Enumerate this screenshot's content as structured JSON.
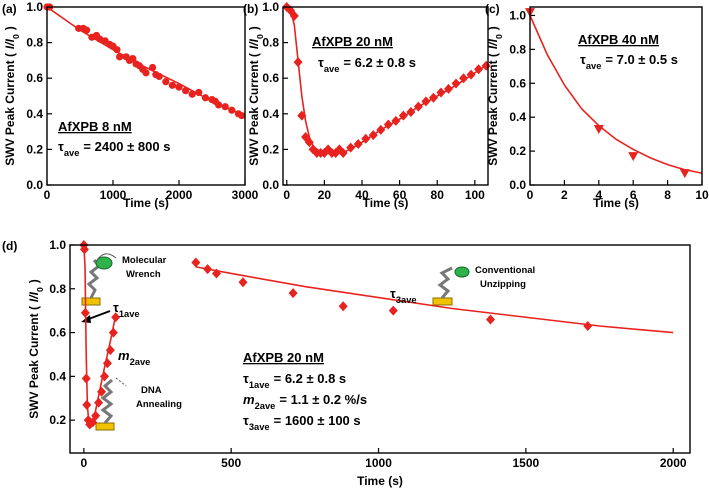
{
  "chart_data": [
    {
      "type": "scatter",
      "panel_label": "(a)",
      "xlabel": "Time (s)",
      "ylabel": [
        {
          "t": "SWV Peak Current ("
        },
        {
          "t": "I/I",
          "italic": true
        },
        {
          "t": "0",
          "sub": true
        },
        {
          "t": ")"
        }
      ],
      "xlim": [
        0,
        3000
      ],
      "ylim": [
        0,
        1.0
      ],
      "xticks": [
        0,
        1000,
        2000,
        3000
      ],
      "yticks": [
        {
          "value": 0,
          "label": "0.0"
        },
        0.2,
        0.4,
        0.6,
        0.8,
        {
          "value": 1,
          "label": "1.0"
        }
      ],
      "marker": "circle",
      "color": "#e8231f",
      "points": {
        "x": [
          0,
          40,
          480,
          550,
          600,
          680,
          750,
          800,
          880,
          950,
          1000,
          1060,
          1100,
          1200,
          1250,
          1300,
          1350,
          1400,
          1450,
          1500,
          1600,
          1650,
          1700,
          1800,
          1900,
          2000,
          2100,
          2200,
          2300,
          2400,
          2500,
          2550,
          2600,
          2700,
          2800,
          2900,
          2950
        ],
        "y": [
          1.0,
          1.0,
          0.88,
          0.88,
          0.87,
          0.83,
          0.84,
          0.82,
          0.81,
          0.79,
          0.78,
          0.76,
          0.72,
          0.72,
          0.7,
          0.71,
          0.68,
          0.67,
          0.65,
          0.63,
          0.66,
          0.62,
          0.61,
          0.58,
          0.56,
          0.55,
          0.53,
          0.51,
          0.52,
          0.49,
          0.48,
          0.47,
          0.45,
          0.44,
          0.42,
          0.4,
          0.39
        ]
      },
      "fits": [
        {
          "x": [
            0,
            500,
            1000,
            1500,
            2000,
            2500,
            3000
          ],
          "y": [
            1.0,
            0.87,
            0.76,
            0.66,
            0.57,
            0.47,
            0.39
          ]
        }
      ],
      "annotations": [
        {
          "parts": [
            {
              "t": "AfXPB 8 nM",
              "underline": true
            }
          ]
        },
        {
          "parts": [
            {
              "t": "τ"
            },
            {
              "t": "ave",
              "sub": true
            },
            {
              "t": "= 2400 ± 800 s"
            }
          ]
        }
      ]
    },
    {
      "type": "scatter",
      "panel_label": "(b)",
      "xlabel": "Time (s)",
      "ylabel": [
        {
          "t": "SWV Peak Current ("
        },
        {
          "t": "I/I",
          "italic": true
        },
        {
          "t": "0",
          "sub": true
        },
        {
          "t": ")"
        }
      ],
      "xlim": [
        -2,
        107
      ],
      "ylim": [
        0,
        1.0
      ],
      "xticks": [
        0,
        20,
        40,
        60,
        80,
        100
      ],
      "yticks": [
        {
          "value": 0,
          "label": "0.0"
        },
        0.2,
        0.4,
        0.6,
        0.8,
        {
          "value": 1,
          "label": "1.0"
        }
      ],
      "marker": "diamond",
      "color": "#e8231f",
      "points": {
        "x": [
          0,
          2,
          4,
          6,
          8,
          10,
          12,
          14,
          16,
          18,
          20,
          22,
          24,
          26,
          28,
          30,
          34,
          38,
          42,
          46,
          50,
          54,
          58,
          62,
          66,
          70,
          74,
          78,
          82,
          86,
          90,
          94,
          98,
          102,
          106
        ],
        "y": [
          1.0,
          0.98,
          0.95,
          0.69,
          0.39,
          0.27,
          0.24,
          0.2,
          0.18,
          0.18,
          0.18,
          0.2,
          0.18,
          0.18,
          0.2,
          0.18,
          0.21,
          0.23,
          0.26,
          0.28,
          0.31,
          0.34,
          0.36,
          0.39,
          0.41,
          0.44,
          0.47,
          0.49,
          0.52,
          0.54,
          0.57,
          0.6,
          0.62,
          0.65,
          0.67
        ]
      },
      "fits": [
        {
          "x": [
            0,
            2,
            4,
            6,
            8,
            10,
            12,
            14,
            16,
            18,
            20,
            24,
            30,
            40,
            50,
            60,
            70,
            80,
            90,
            100,
            107
          ],
          "y": [
            1.0,
            0.98,
            0.9,
            0.7,
            0.5,
            0.36,
            0.27,
            0.22,
            0.2,
            0.19,
            0.18,
            0.18,
            0.18,
            0.24,
            0.31,
            0.37,
            0.44,
            0.5,
            0.56,
            0.63,
            0.68
          ]
        }
      ],
      "annotations": [
        {
          "parts": [
            {
              "t": "AfXPB 20 nM",
              "underline": true
            }
          ]
        },
        {
          "parts": [
            {
              "t": "τ"
            },
            {
              "t": "ave",
              "sub": true
            },
            {
              "t": "= 6.2 ± 0.8 s"
            }
          ]
        }
      ]
    },
    {
      "type": "scatter",
      "panel_label": "(c)",
      "xlabel": "Time (s)",
      "ylabel": [
        {
          "t": "SWV Peak Current ("
        },
        {
          "t": "I/I",
          "italic": true
        },
        {
          "t": "0",
          "sub": true
        },
        {
          "t": ")"
        }
      ],
      "xlim": [
        0,
        10
      ],
      "ylim": [
        0,
        1.05
      ],
      "xticks": [
        0,
        2,
        4,
        6,
        8,
        10
      ],
      "yticks": [
        {
          "value": 0,
          "label": "0.0"
        },
        0.2,
        0.4,
        0.6,
        0.8,
        {
          "value": 1,
          "label": "1.0"
        }
      ],
      "marker": "triangle-down",
      "color": "#e8231f",
      "points": {
        "x": [
          0,
          4,
          6,
          9
        ],
        "y": [
          1.02,
          0.33,
          0.17,
          0.07
        ]
      },
      "fits": [
        {
          "x": [
            0,
            1,
            2,
            3,
            4,
            5,
            6,
            7,
            8,
            9,
            10
          ],
          "y": [
            1.0,
            0.77,
            0.59,
            0.45,
            0.35,
            0.27,
            0.21,
            0.16,
            0.12,
            0.09,
            0.07
          ]
        }
      ],
      "annotations": [
        {
          "parts": [
            {
              "t": "AfXPB 40 nM",
              "underline": true
            }
          ]
        },
        {
          "parts": [
            {
              "t": "τ"
            },
            {
              "t": "ave",
              "sub": true
            },
            {
              "t": "= 7.0 ± 0.5 s"
            }
          ]
        }
      ]
    },
    {
      "type": "scatter",
      "panel_label": "(d)",
      "xlabel": "Time (s)",
      "ylabel": [
        {
          "t": "SWV Peak Current ("
        },
        {
          "t": "I/I",
          "italic": true
        },
        {
          "t": "0",
          "sub": true
        },
        {
          "t": ")"
        }
      ],
      "xlim": [
        -47,
        2057
      ],
      "ylim": [
        0.05,
        1.0
      ],
      "xticks": [
        0,
        500,
        1000,
        1500,
        2000
      ],
      "yticks": [
        0.2,
        0.4,
        0.6,
        0.8,
        {
          "value": 1,
          "label": "1.0"
        }
      ],
      "marker": "diamond",
      "color": "#e8231f",
      "points": {
        "x": [
          0,
          2,
          5,
          8,
          10,
          15,
          20,
          30,
          40,
          50,
          60,
          70,
          80,
          90,
          100,
          108,
          380,
          420,
          450,
          540,
          710,
          880,
          1050,
          1380,
          1710
        ],
        "y": [
          1.0,
          0.98,
          0.69,
          0.39,
          0.27,
          0.2,
          0.18,
          0.19,
          0.22,
          0.28,
          0.33,
          0.4,
          0.46,
          0.52,
          0.6,
          0.67,
          0.92,
          0.89,
          0.87,
          0.83,
          0.78,
          0.72,
          0.7,
          0.66,
          0.63
        ]
      },
      "fits": [
        {
          "x": [
            0,
            4,
            8,
            12,
            16,
            20,
            30,
            50,
            70,
            90,
            108
          ],
          "y": [
            1.0,
            0.9,
            0.5,
            0.27,
            0.2,
            0.18,
            0.18,
            0.31,
            0.44,
            0.56,
            0.68
          ]
        },
        {
          "x": [
            380,
            500,
            750,
            1000,
            1250,
            1500,
            1750,
            2000
          ],
          "y": [
            0.9,
            0.87,
            0.81,
            0.76,
            0.71,
            0.67,
            0.63,
            0.6
          ]
        }
      ],
      "annotations": [
        {
          "parts": [
            {
              "t": "Molecular"
            }
          ]
        },
        {
          "parts": [
            {
              "t": "Wrench"
            }
          ]
        },
        {
          "parts": [
            {
              "t": "τ"
            },
            {
              "t": "1ave",
              "sub": true
            }
          ]
        },
        {
          "parts": [
            {
              "t": "m",
              "italic": true
            },
            {
              "t": "2ave",
              "sub": true
            }
          ]
        },
        {
          "parts": [
            {
              "t": "DNA"
            }
          ]
        },
        {
          "parts": [
            {
              "t": "Annealing"
            }
          ]
        },
        {
          "parts": [
            {
              "t": "τ"
            },
            {
              "t": "3ave",
              "sub": true
            }
          ]
        },
        {
          "parts": [
            {
              "t": "Conventional"
            }
          ]
        },
        {
          "parts": [
            {
              "t": "Unzipping"
            }
          ]
        },
        {
          "parts": [
            {
              "t": "AfXPB 20 nM",
              "underline": true
            }
          ]
        },
        {
          "parts": [
            {
              "t": "τ"
            },
            {
              "t": "1ave",
              "sub": true
            },
            {
              "t": "= 6.2 ± 0.8 s"
            }
          ]
        },
        {
          "parts": [
            {
              "t": "m",
              "italic": true
            },
            {
              "t": "2ave",
              "sub": true
            },
            {
              "t": "= 1.1 ± 0.2 %/s"
            }
          ]
        },
        {
          "parts": [
            {
              "t": "τ"
            },
            {
              "t": "3ave",
              "sub": true
            },
            {
              "t": "= 1600 ± 100 s"
            }
          ]
        }
      ]
    }
  ]
}
